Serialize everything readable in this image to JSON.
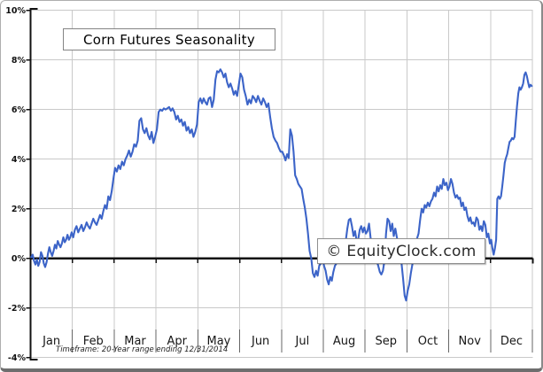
{
  "chart_data": {
    "type": "line",
    "title": "Corn Futures Seasonality",
    "watermark": "© EquityClock.com",
    "footnote": "Timeframe: 20-Year range ending 12/31/2014",
    "x_categories": [
      "Jan",
      "Feb",
      "Mar",
      "Apr",
      "May",
      "Jun",
      "Jul",
      "Aug",
      "Sep",
      "Oct",
      "Nov",
      "Dec"
    ],
    "y_axis": {
      "tick_labels": [
        "10%",
        "8%",
        "6%",
        "4%",
        "2%",
        "0%",
        "-2%",
        "-4%"
      ],
      "tick_values": [
        10,
        8,
        6,
        4,
        2,
        0,
        -2,
        -4
      ],
      "ylim": [
        -4,
        10
      ],
      "unit": "%"
    },
    "grid": true,
    "legend": false,
    "colors": {
      "line": "#3c64c8",
      "axis": "#111111",
      "grid": "#c9c9c9",
      "grid_dark_tick": "#666666",
      "text": "#111111"
    },
    "series": {
      "unit": "%",
      "values_by_month": [
        [
          0.05,
          0.15,
          -0.1,
          -0.25,
          -0.05,
          -0.3,
          -0.15,
          0.25,
          0.1,
          -0.2,
          -0.35,
          -0.15,
          0.2,
          0.45,
          0.25,
          0.1,
          0.3,
          0.55,
          0.4,
          0.7,
          0.55,
          0.45,
          0.6,
          0.85,
          0.65,
          0.75,
          0.95,
          0.75,
          0.85,
          1.05
        ],
        [
          0.85,
          1.15,
          1.3,
          1.05,
          1.2,
          1.35,
          1.1,
          1.25,
          1.45,
          1.3,
          1.2,
          1.4,
          1.6,
          1.45,
          1.35,
          1.55,
          1.75,
          1.6,
          1.9,
          2.15,
          2.0,
          2.5,
          2.35,
          2.7,
          3.2
        ],
        [
          3.65,
          3.5,
          3.75,
          3.6,
          3.9,
          3.75,
          4.0,
          4.15,
          4.35,
          4.1,
          4.3,
          4.6,
          4.5,
          4.75,
          5.55,
          5.65,
          5.2,
          5.05,
          5.25,
          4.95,
          4.8,
          5.1,
          4.65,
          4.9
        ],
        [
          5.2,
          5.9,
          6.0,
          5.95,
          6.05,
          6.0,
          6.05,
          6.1,
          5.95,
          6.05,
          5.9,
          5.6,
          5.75,
          5.5,
          5.6,
          5.35,
          5.5,
          5.15,
          5.3,
          5.05,
          5.2,
          4.9,
          5.1,
          5.4
        ],
        [
          6.3,
          6.45,
          6.25,
          6.45,
          6.3,
          6.2,
          6.45,
          6.5,
          6.1,
          6.4,
          7.2,
          7.55,
          7.5,
          7.62,
          7.5,
          7.3,
          7.45,
          7.1,
          6.9,
          7.05,
          6.85,
          6.6,
          6.75,
          6.55,
          7.0
        ],
        [
          7.45,
          7.3,
          6.8,
          6.55,
          6.2,
          6.4,
          6.25,
          6.55,
          6.45,
          6.3,
          6.55,
          6.35,
          6.2,
          6.45,
          6.3,
          6.1,
          6.25,
          5.7,
          5.25,
          4.9,
          4.75,
          4.65,
          4.45,
          4.3
        ],
        [
          4.3,
          4.15,
          3.95,
          4.2,
          4.05,
          5.2,
          4.95,
          4.3,
          3.35,
          3.2,
          3.0,
          2.9,
          2.8,
          2.4,
          2.05,
          1.6,
          1.0,
          0.3,
          0.0,
          -0.6,
          -0.75,
          -0.5,
          -0.7,
          -0.3,
          -0.2,
          0.0
        ],
        [
          -0.3,
          -0.5,
          -0.85,
          -1.05,
          -0.75,
          -0.9,
          -0.55,
          -0.3,
          -0.2,
          0.05,
          0.2,
          0.1,
          0.3,
          0.5,
          0.7,
          1.2,
          1.55,
          1.6,
          1.3,
          0.9,
          1.1,
          0.7,
          0.75,
          1.15,
          1.3,
          1.05,
          1.25
        ],
        [
          1.0,
          1.1,
          1.4,
          0.85,
          0.5,
          0.3,
          0.1,
          -0.1,
          -0.3,
          -0.55,
          -0.65,
          -0.5,
          -0.1,
          1.0,
          1.6,
          1.5,
          1.1,
          1.4,
          0.9,
          1.2,
          0.85,
          0.6,
          0.3,
          -0.2,
          -0.8,
          -1.5,
          -1.7
        ],
        [
          -1.3,
          -1.05,
          -0.6,
          -0.25,
          0.1,
          0.5,
          0.8,
          1.0,
          1.55,
          2.0,
          1.85,
          2.15,
          2.05,
          2.25,
          2.1,
          2.3,
          2.4,
          2.65,
          2.5,
          2.9,
          2.7,
          2.95,
          2.8,
          3.2,
          2.95,
          3.05,
          2.75
        ],
        [
          2.9,
          3.2,
          3.0,
          2.65,
          2.45,
          2.55,
          2.4,
          2.45,
          2.1,
          2.25,
          1.95,
          2.05,
          1.7,
          1.5,
          1.65,
          1.4,
          1.45,
          1.3,
          1.65,
          1.55,
          1.15,
          1.3,
          1.1,
          1.5,
          1.35,
          0.85,
          1.0,
          0.6
        ],
        [
          0.75,
          0.4,
          0.15,
          0.4,
          0.75,
          2.4,
          2.5,
          2.4,
          2.5,
          2.9,
          3.35,
          3.85,
          4.05,
          4.2,
          4.45,
          4.7,
          4.75,
          4.85,
          4.8,
          4.9,
          5.55,
          6.15,
          6.65,
          6.9,
          6.8,
          6.9,
          7.05,
          7.4,
          7.5,
          7.35,
          7.1,
          6.9,
          7.0,
          6.95
        ]
      ]
    }
  }
}
